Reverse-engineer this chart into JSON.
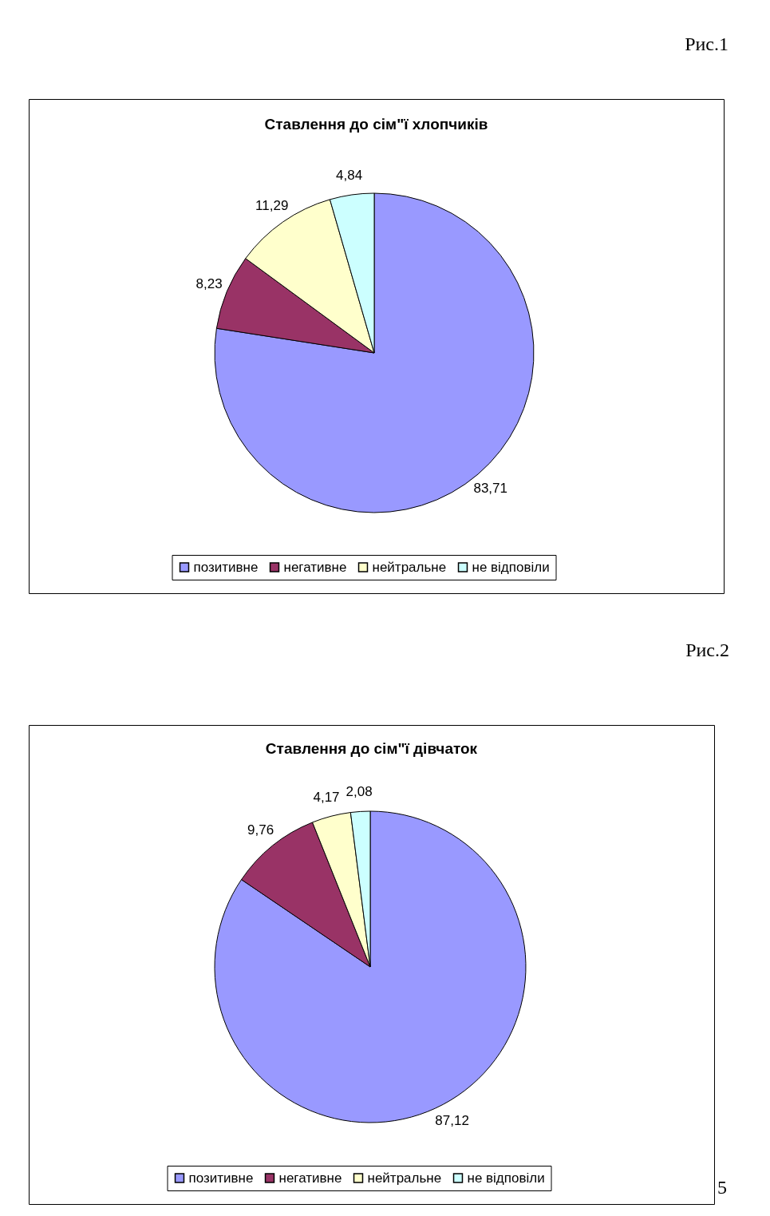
{
  "chart_data": [
    {
      "type": "pie",
      "title": "Ставлення до сім\"ї хлопчиків",
      "categories": [
        "позитивне",
        "негативне",
        "нейтральне",
        "не відповіли"
      ],
      "values": [
        83.71,
        8.23,
        11.29,
        4.84
      ],
      "value_labels": [
        "83,71",
        "8,23",
        "11,29",
        "4,84"
      ],
      "colors": [
        "#9999ff",
        "#993366",
        "#ffffcc",
        "#ccffff"
      ],
      "legend": "bottom",
      "annotations": [
        "Рис.1"
      ]
    },
    {
      "type": "pie",
      "title": "Ставлення до сім\"ї дівчаток",
      "categories": [
        "позитивне",
        "негативне",
        "нейтральне",
        "не відповіли"
      ],
      "values": [
        87.12,
        9.76,
        4.17,
        2.08
      ],
      "value_labels": [
        "87,12",
        "9,76",
        "4,17",
        "2,08"
      ],
      "colors": [
        "#9999ff",
        "#993366",
        "#ffffcc",
        "#ccffff"
      ],
      "legend": "bottom",
      "annotations": [
        "Рис.2",
        "5"
      ]
    }
  ]
}
